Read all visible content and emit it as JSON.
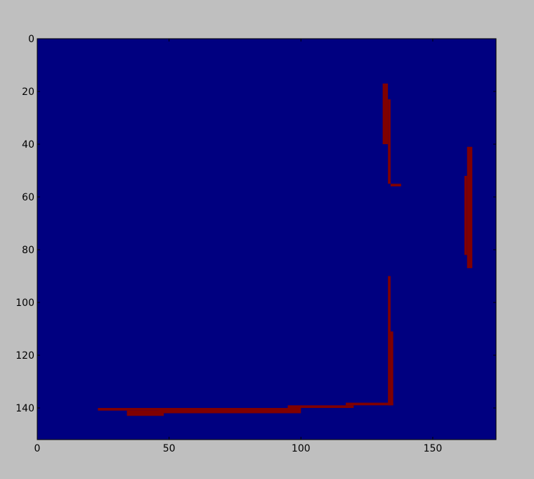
{
  "chart_data": {
    "type": "heatmap",
    "title": "",
    "xlabel": "",
    "ylabel": "",
    "xlim": [
      0,
      174
    ],
    "ylim": [
      152,
      0
    ],
    "x_ticks": [
      "0",
      "50",
      "100",
      "150"
    ],
    "y_ticks": [
      "0",
      "20",
      "40",
      "60",
      "80",
      "100",
      "120",
      "140"
    ],
    "colors": {
      "background": "#000080",
      "foreground": "#800000",
      "figure_bg": "#bfbfbf"
    },
    "segments": [
      {
        "name": "top-vertical-wall",
        "x": [
          133,
          134
        ],
        "y": [
          23,
          55
        ]
      },
      {
        "name": "top-vertical-wall-fragment",
        "x": [
          131,
          133
        ],
        "y": [
          17,
          40
        ]
      },
      {
        "name": "top-small-foot",
        "x": [
          134,
          138
        ],
        "y": [
          55,
          56
        ]
      },
      {
        "name": "right-vertical-wall",
        "x": [
          163,
          165
        ],
        "y": [
          41,
          87
        ]
      },
      {
        "name": "right-vertical-notch",
        "x": [
          162,
          163
        ],
        "y": [
          52,
          82
        ]
      },
      {
        "name": "middle-vertical-wall",
        "x": [
          133,
          134
        ],
        "y": [
          90,
          139
        ]
      },
      {
        "name": "middle-vertical-thick",
        "x": [
          134,
          135
        ],
        "y": [
          111,
          139
        ]
      },
      {
        "name": "bottom-horizontal-wall-left",
        "x": [
          23,
          70
        ],
        "y": [
          140,
          141
        ]
      },
      {
        "name": "bottom-horizontal-wall-left-lower",
        "x": [
          34,
          48
        ],
        "y": [
          141,
          143
        ]
      },
      {
        "name": "bottom-horizontal-wall-mid",
        "x": [
          46,
          100
        ],
        "y": [
          140,
          142
        ]
      },
      {
        "name": "bottom-horizontal-wall-right",
        "x": [
          95,
          120
        ],
        "y": [
          139,
          140
        ]
      },
      {
        "name": "bottom-horizontal-wall-end",
        "x": [
          117,
          135
        ],
        "y": [
          138,
          139
        ]
      }
    ]
  }
}
